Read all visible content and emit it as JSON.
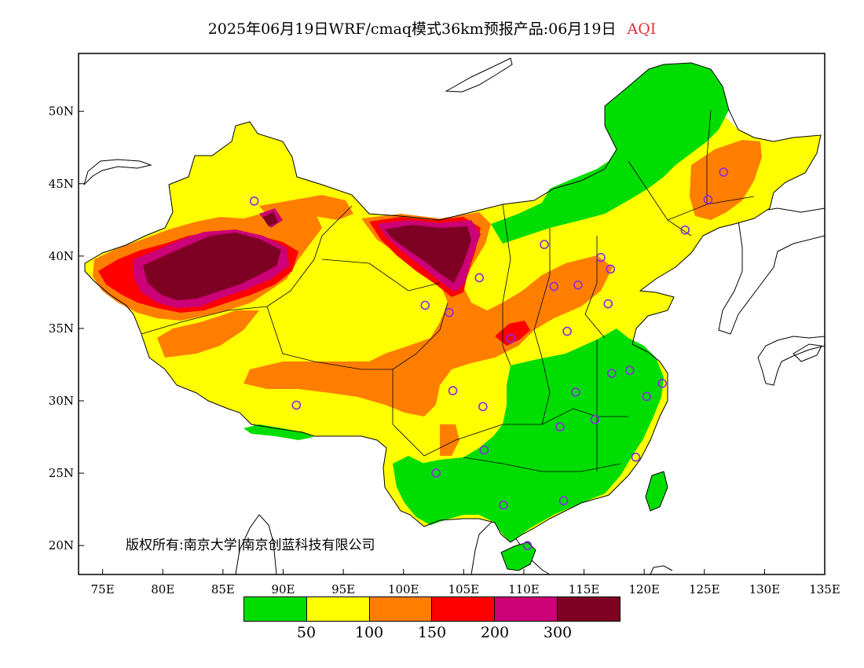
{
  "title": {
    "main": "2025年06月19日WRF/cmaq模式36km预报产品:06月19日",
    "variable": "AQI",
    "variable_color": "#e0303a"
  },
  "copyright": "版权所有:南京大学|南京创蓝科技有限公司",
  "axes": {
    "x_ticks": [
      "75E",
      "80E",
      "85E",
      "90E",
      "95E",
      "100E",
      "105E",
      "110E",
      "115E",
      "120E",
      "125E",
      "130E",
      "135E"
    ],
    "y_ticks": [
      "50N",
      "45N",
      "40N",
      "35N",
      "30N",
      "25N",
      "20N"
    ],
    "lon_range": [
      73,
      135
    ],
    "lat_range": [
      18,
      54
    ]
  },
  "legend": {
    "colors": [
      "#00dd00",
      "#ffff00",
      "#ff7e00",
      "#ff0000",
      "#cc0077",
      "#7e0023"
    ],
    "labels": [
      "50",
      "100",
      "150",
      "200",
      "300"
    ]
  },
  "station_markers": {
    "color": "#8a2be2",
    "points": [
      [
        87.6,
        43.8
      ],
      [
        126.6,
        45.8
      ],
      [
        125.3,
        43.9
      ],
      [
        123.4,
        41.8
      ],
      [
        111.7,
        40.8
      ],
      [
        116.4,
        39.9
      ],
      [
        117.2,
        39.1
      ],
      [
        106.3,
        38.5
      ],
      [
        112.5,
        37.9
      ],
      [
        114.5,
        38.0
      ],
      [
        101.8,
        36.6
      ],
      [
        103.8,
        36.1
      ],
      [
        117.0,
        36.7
      ],
      [
        108.9,
        34.3
      ],
      [
        113.6,
        34.8
      ],
      [
        117.3,
        31.9
      ],
      [
        118.8,
        32.1
      ],
      [
        121.5,
        31.2
      ],
      [
        120.2,
        30.3
      ],
      [
        104.1,
        30.7
      ],
      [
        106.6,
        29.6
      ],
      [
        114.3,
        30.6
      ],
      [
        113.0,
        28.2
      ],
      [
        115.9,
        28.7
      ],
      [
        91.1,
        29.7
      ],
      [
        106.7,
        26.6
      ],
      [
        102.7,
        25.0
      ],
      [
        119.3,
        26.1
      ],
      [
        113.3,
        23.1
      ],
      [
        108.3,
        22.8
      ],
      [
        110.3,
        20.0
      ]
    ]
  }
}
